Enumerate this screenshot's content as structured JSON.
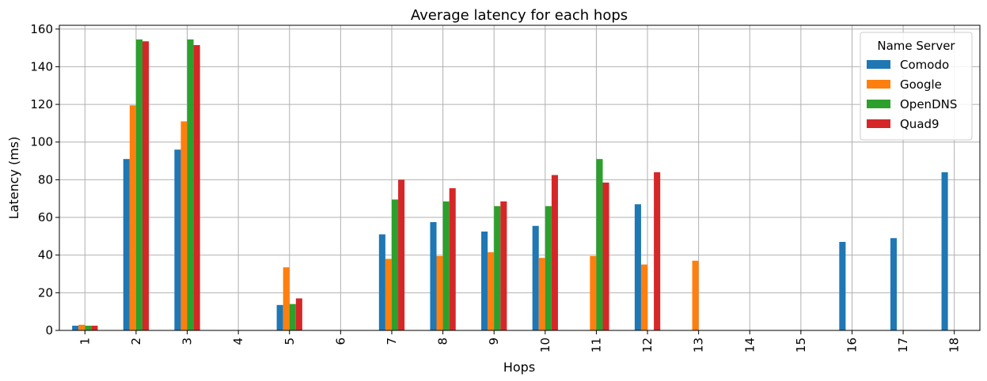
{
  "chart_data": {
    "type": "bar",
    "title": "Average latency for each hops",
    "xlabel": "Hops",
    "ylabel": "Latency (ms)",
    "categories": [
      "1",
      "2",
      "3",
      "4",
      "5",
      "6",
      "7",
      "8",
      "9",
      "10",
      "11",
      "12",
      "13",
      "14",
      "15",
      "16",
      "17",
      "18"
    ],
    "series": [
      {
        "name": "Comodo",
        "color": "#1f77b4",
        "values": [
          2.5,
          91,
          96,
          0,
          13.5,
          0,
          51,
          57.5,
          52.5,
          55.5,
          0,
          67,
          0,
          0,
          0,
          47,
          49,
          84
        ]
      },
      {
        "name": "Google",
        "color": "#ff7f0e",
        "values": [
          3,
          119.5,
          111,
          0,
          33.5,
          0,
          38,
          39.5,
          41.5,
          38.5,
          39.5,
          35,
          37,
          0,
          0,
          0,
          0,
          0
        ]
      },
      {
        "name": "OpenDNS",
        "color": "#2ca02c",
        "values": [
          2.5,
          154.5,
          154.5,
          0,
          14,
          0,
          69.5,
          68.5,
          66,
          66,
          91,
          0,
          0,
          0,
          0,
          0,
          0,
          0
        ]
      },
      {
        "name": "Quad9",
        "color": "#d62728",
        "values": [
          2.5,
          153.5,
          151.5,
          0,
          17,
          0,
          80,
          75.5,
          68.5,
          82.5,
          78.5,
          84,
          0,
          0,
          0,
          0,
          0,
          0
        ]
      }
    ],
    "ylim": [
      0,
      162
    ],
    "yticks": [
      0,
      20,
      40,
      60,
      80,
      100,
      120,
      140,
      160
    ],
    "grid": true,
    "legend": {
      "title": "Name Server",
      "placement": "top-right"
    }
  }
}
